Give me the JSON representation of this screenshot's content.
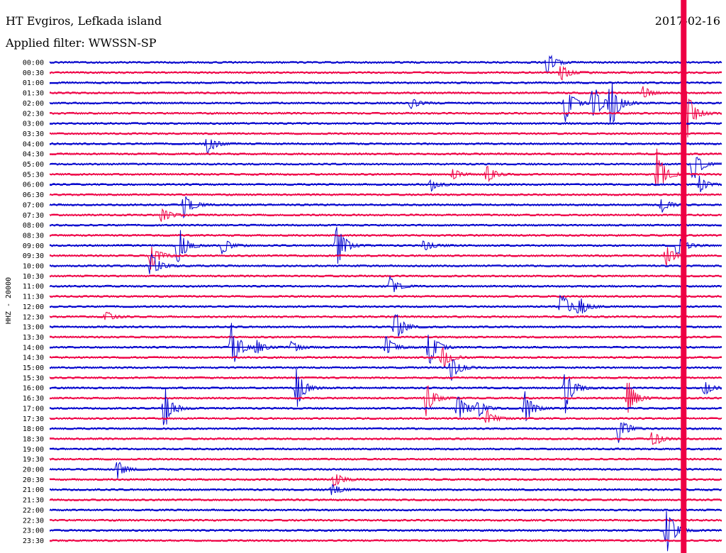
{
  "header": {
    "station": "HT Evgiros, Lefkada island",
    "filter": "Applied filter: WWSSN-SP",
    "date": "2017-02-16"
  },
  "chart_data": {
    "type": "line",
    "ylabel": "HHZ - 20000",
    "rows": [
      "00:00",
      "00:30",
      "01:00",
      "01:30",
      "02:00",
      "02:30",
      "03:00",
      "03:30",
      "04:00",
      "04:30",
      "05:00",
      "05:30",
      "06:00",
      "06:30",
      "07:00",
      "07:30",
      "08:00",
      "08:30",
      "09:00",
      "09:30",
      "10:00",
      "10:30",
      "11:00",
      "11:30",
      "12:00",
      "12:30",
      "13:00",
      "13:30",
      "14:00",
      "14:30",
      "15:00",
      "15:30",
      "16:00",
      "16:30",
      "17:00",
      "17:30",
      "18:00",
      "18:30",
      "19:00",
      "19:30",
      "20:00",
      "20:30",
      "21:00",
      "21:30",
      "22:00",
      "22:30",
      "23:00",
      "23:30"
    ],
    "row_duration_minutes": 30,
    "colors": [
      "#0000cc",
      "#ee0044"
    ],
    "events": [
      {
        "row": 0,
        "minute": 22.2,
        "amp": 1.2
      },
      {
        "row": 1,
        "minute": 22.8,
        "amp": 0.9
      },
      {
        "row": 3,
        "minute": 26.5,
        "amp": 0.7
      },
      {
        "row": 4,
        "minute": 23.0,
        "amp": 2.2
      },
      {
        "row": 4,
        "minute": 24.2,
        "amp": 2.6
      },
      {
        "row": 4,
        "minute": 25.0,
        "amp": 3.4
      },
      {
        "row": 4,
        "minute": 16.1,
        "amp": 0.6
      },
      {
        "row": 5,
        "minute": 28.3,
        "amp": 4.5
      },
      {
        "row": 8,
        "minute": 7.0,
        "amp": 1.2
      },
      {
        "row": 10,
        "minute": 28.7,
        "amp": 2.0
      },
      {
        "row": 11,
        "minute": 27.1,
        "amp": 2.6
      },
      {
        "row": 11,
        "minute": 19.5,
        "amp": 1.0
      },
      {
        "row": 11,
        "minute": 18.0,
        "amp": 0.6
      },
      {
        "row": 12,
        "minute": 17.0,
        "amp": 0.7
      },
      {
        "row": 12,
        "minute": 29.0,
        "amp": 1.0
      },
      {
        "row": 14,
        "minute": 6.0,
        "amp": 1.6
      },
      {
        "row": 14,
        "minute": 27.3,
        "amp": 0.8
      },
      {
        "row": 15,
        "minute": 5.0,
        "amp": 0.9
      },
      {
        "row": 18,
        "minute": 5.7,
        "amp": 2.4
      },
      {
        "row": 18,
        "minute": 7.7,
        "amp": 0.9
      },
      {
        "row": 18,
        "minute": 12.8,
        "amp": 2.6
      },
      {
        "row": 18,
        "minute": 28.0,
        "amp": 1.4
      },
      {
        "row": 18,
        "minute": 16.7,
        "amp": 0.7
      },
      {
        "row": 19,
        "minute": 4.5,
        "amp": 1.6
      },
      {
        "row": 19,
        "minute": 27.5,
        "amp": 1.2
      },
      {
        "row": 20,
        "minute": 4.5,
        "amp": 2.0
      },
      {
        "row": 22,
        "minute": 15.2,
        "amp": 1.0
      },
      {
        "row": 24,
        "minute": 22.8,
        "amp": 1.8
      },
      {
        "row": 24,
        "minute": 23.6,
        "amp": 1.2
      },
      {
        "row": 25,
        "minute": 2.5,
        "amp": 0.6
      },
      {
        "row": 26,
        "minute": 15.4,
        "amp": 1.8
      },
      {
        "row": 28,
        "minute": 8.1,
        "amp": 3.0
      },
      {
        "row": 28,
        "minute": 9.2,
        "amp": 0.9
      },
      {
        "row": 28,
        "minute": 15.0,
        "amp": 1.2
      },
      {
        "row": 28,
        "minute": 16.9,
        "amp": 2.4
      },
      {
        "row": 28,
        "minute": 10.8,
        "amp": 0.7
      },
      {
        "row": 29,
        "minute": 17.5,
        "amp": 1.4
      },
      {
        "row": 30,
        "minute": 17.9,
        "amp": 1.6
      },
      {
        "row": 32,
        "minute": 11.0,
        "amp": 2.4
      },
      {
        "row": 32,
        "minute": 23.0,
        "amp": 2.8
      },
      {
        "row": 32,
        "minute": 29.2,
        "amp": 0.8
      },
      {
        "row": 33,
        "minute": 16.8,
        "amp": 1.8
      },
      {
        "row": 33,
        "minute": 25.8,
        "amp": 2.0
      },
      {
        "row": 34,
        "minute": 5.1,
        "amp": 2.6
      },
      {
        "row": 34,
        "minute": 18.2,
        "amp": 2.0
      },
      {
        "row": 34,
        "minute": 21.2,
        "amp": 1.8
      },
      {
        "row": 34,
        "minute": 19.1,
        "amp": 0.9
      },
      {
        "row": 35,
        "minute": 19.5,
        "amp": 1.0
      },
      {
        "row": 36,
        "minute": 25.4,
        "amp": 1.6
      },
      {
        "row": 37,
        "minute": 26.9,
        "amp": 1.0
      },
      {
        "row": 40,
        "minute": 3.0,
        "amp": 1.0
      },
      {
        "row": 41,
        "minute": 12.7,
        "amp": 0.8
      },
      {
        "row": 42,
        "minute": 12.6,
        "amp": 0.6
      },
      {
        "row": 45,
        "minute": 30.8,
        "amp": 1.0
      },
      {
        "row": 46,
        "minute": 27.5,
        "amp": 3.0
      }
    ]
  }
}
